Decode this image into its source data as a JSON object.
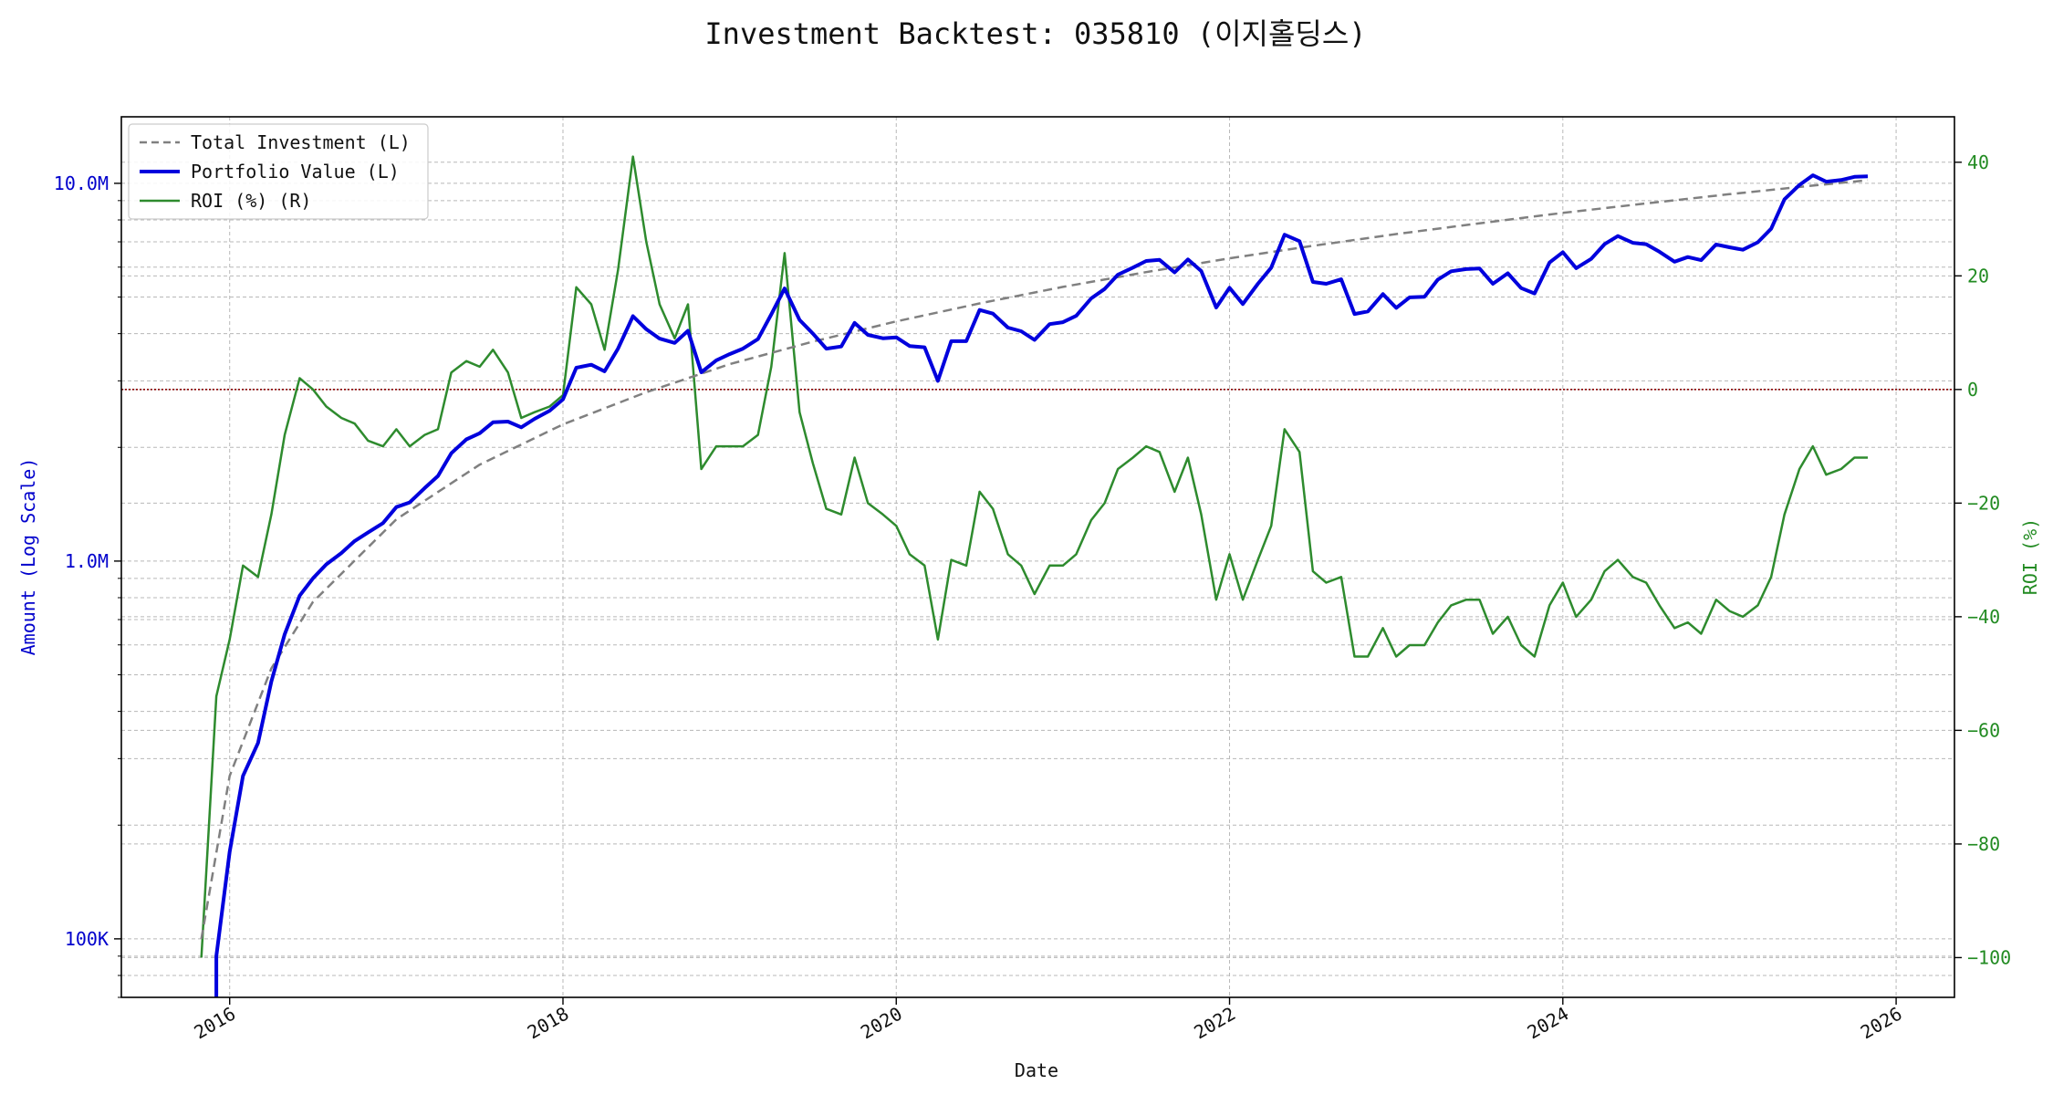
{
  "chart_data": {
    "type": "line",
    "title": "Investment Backtest: 035810 (이지홀딩스)",
    "xlabel": "Date",
    "ylabel_left": "Amount (Log Scale)",
    "ylabel_right": "ROI (%)",
    "x_range": [
      2015.35,
      2026.35
    ],
    "x_ticks": [
      {
        "value": 2016,
        "label": "2016"
      },
      {
        "value": 2018,
        "label": "2018"
      },
      {
        "value": 2020,
        "label": "2020"
      },
      {
        "value": 2022,
        "label": "2022"
      },
      {
        "value": 2024,
        "label": "2024"
      },
      {
        "value": 2026,
        "label": "2026"
      }
    ],
    "left_axis": {
      "scale": "log",
      "range": [
        70000,
        15000000
      ],
      "ticks": [
        {
          "value": 100000,
          "label": "100K"
        },
        {
          "value": 1000000,
          "label": "1.0M"
        },
        {
          "value": 10000000,
          "label": "10.0M"
        }
      ],
      "color": "#0000cc"
    },
    "right_axis": {
      "scale": "linear",
      "range": [
        -107,
        48
      ],
      "ticks": [
        {
          "value": -100,
          "label": "−100"
        },
        {
          "value": -80,
          "label": "−80"
        },
        {
          "value": -60,
          "label": "−60"
        },
        {
          "value": -40,
          "label": "−40"
        },
        {
          "value": -20,
          "label": "−20"
        },
        {
          "value": 0,
          "label": "0"
        },
        {
          "value": 20,
          "label": "20"
        },
        {
          "value": 40,
          "label": "40"
        }
      ],
      "color": "#228b22"
    },
    "zero_line": {
      "roi": 0,
      "color": "#8b0000"
    },
    "grid": true,
    "legend": {
      "position": "top-left",
      "entries": [
        {
          "label": "Total Investment (L)",
          "color": "#808080",
          "style": "dashed"
        },
        {
          "label": "Portfolio Value (L)",
          "color": "#0000dd",
          "style": "solid-thick"
        },
        {
          "label": "ROI (%) (R)",
          "color": "#2e8b2e",
          "style": "solid"
        }
      ]
    },
    "series": [
      {
        "name": "Total Investment (L)",
        "axis": "left",
        "x": [
          2015.83,
          2016.0,
          2016.25,
          2016.5,
          2017.0,
          2017.5,
          2018.0,
          2018.5,
          2019.0,
          2019.5,
          2020.0,
          2020.5,
          2021.0,
          2021.5,
          2022.0,
          2022.5,
          2023.0,
          2023.5,
          2024.0,
          2024.5,
          2025.0,
          2025.5,
          2025.83
        ],
        "values": [
          100000,
          270000,
          520000,
          780000,
          1290000,
          1800000,
          2300000,
          2800000,
          3320000,
          3810000,
          4310000,
          4810000,
          5320000,
          5820000,
          6330000,
          6830000,
          7340000,
          7840000,
          8350000,
          8850000,
          9360000,
          9860000,
          10190000
        ]
      },
      {
        "name": "Portfolio Value (L)",
        "axis": "left",
        "x": [
          2015.92,
          2016.0,
          2016.08,
          2016.17,
          2016.25,
          2016.33,
          2016.42,
          2016.5,
          2016.58,
          2016.67,
          2016.75,
          2016.83,
          2016.92,
          2017.0,
          2017.08,
          2017.17,
          2017.25,
          2017.33,
          2017.42,
          2017.5,
          2017.58,
          2017.67,
          2017.75,
          2017.83,
          2017.92,
          2018.0,
          2018.08,
          2018.17,
          2018.25,
          2018.33,
          2018.42,
          2018.5,
          2018.58,
          2018.67,
          2018.75,
          2018.83,
          2018.92,
          2019.0,
          2019.08,
          2019.17,
          2019.25,
          2019.33,
          2019.42,
          2019.5,
          2019.58,
          2019.67,
          2019.75,
          2019.83,
          2019.92,
          2020.0,
          2020.08,
          2020.17,
          2020.25,
          2020.33,
          2020.42,
          2020.5,
          2020.58,
          2020.67,
          2020.75,
          2020.83,
          2020.92,
          2021.0,
          2021.08,
          2021.17,
          2021.25,
          2021.33,
          2021.42,
          2021.5,
          2021.58,
          2021.67,
          2021.75,
          2021.83,
          2021.92,
          2022.0,
          2022.08,
          2022.17,
          2022.25,
          2022.33,
          2022.42,
          2022.5,
          2022.58,
          2022.67,
          2022.75,
          2022.83,
          2022.92,
          2023.0,
          2023.08,
          2023.17,
          2023.25,
          2023.33,
          2023.42,
          2023.5,
          2023.58,
          2023.67,
          2023.75,
          2023.83,
          2023.92,
          2024.0,
          2024.08,
          2024.17,
          2024.25,
          2024.33,
          2024.42,
          2024.5,
          2024.58,
          2024.67,
          2024.75,
          2024.83,
          2024.92,
          2025.0,
          2025.08,
          2025.17,
          2025.25,
          2025.33,
          2025.42,
          2025.5,
          2025.58,
          2025.67,
          2025.75,
          2025.83
        ],
        "values": [
          90000,
          170000,
          270000,
          330000,
          480000,
          640000,
          810000,
          900000,
          980000,
          1050000,
          1130000,
          1190000,
          1260000,
          1390000,
          1430000,
          1560000,
          1680000,
          1930000,
          2100000,
          2180000,
          2330000,
          2340000,
          2260000,
          2380000,
          2500000,
          2680000,
          3250000,
          3310000,
          3180000,
          3650000,
          4450000,
          4110000,
          3880000,
          3780000,
          4070000,
          3160000,
          3400000,
          3530000,
          3650000,
          3870000,
          4500000,
          5270000,
          4350000,
          4000000,
          3650000,
          3700000,
          4270000,
          3970000,
          3890000,
          3910000,
          3710000,
          3680000,
          3000000,
          3820000,
          3820000,
          4620000,
          4520000,
          4150000,
          4060000,
          3850000,
          4240000,
          4290000,
          4460000,
          4960000,
          5250000,
          5730000,
          5980000,
          6230000,
          6270000,
          5810000,
          6290000,
          5860000,
          4690000,
          5290000,
          4790000,
          5420000,
          5980000,
          7310000,
          7030000,
          5480000,
          5420000,
          5570000,
          4510000,
          4580000,
          5090000,
          4680000,
          4990000,
          5010000,
          5560000,
          5850000,
          5930000,
          5950000,
          5420000,
          5780000,
          5280000,
          5110000,
          6170000,
          6570000,
          5960000,
          6310000,
          6900000,
          7250000,
          6960000,
          6900000,
          6590000,
          6200000,
          6380000,
          6260000,
          6890000,
          6770000,
          6670000,
          6980000,
          7580000,
          9070000,
          9900000,
          10500000,
          10100000,
          10200000,
          10400000,
          10430000
        ]
      },
      {
        "name": "ROI (%) (R)",
        "axis": "right",
        "x": [
          2015.83,
          2015.92,
          2016.0,
          2016.08,
          2016.17,
          2016.25,
          2016.33,
          2016.42,
          2016.5,
          2016.58,
          2016.67,
          2016.75,
          2016.83,
          2016.92,
          2017.0,
          2017.08,
          2017.17,
          2017.25,
          2017.33,
          2017.42,
          2017.5,
          2017.58,
          2017.67,
          2017.75,
          2017.83,
          2017.92,
          2018.0,
          2018.08,
          2018.17,
          2018.25,
          2018.33,
          2018.42,
          2018.5,
          2018.58,
          2018.67,
          2018.75,
          2018.83,
          2018.92,
          2019.0,
          2019.08,
          2019.17,
          2019.25,
          2019.33,
          2019.42,
          2019.5,
          2019.58,
          2019.67,
          2019.75,
          2019.83,
          2019.92,
          2020.0,
          2020.08,
          2020.17,
          2020.25,
          2020.33,
          2020.42,
          2020.5,
          2020.58,
          2020.67,
          2020.75,
          2020.83,
          2020.92,
          2021.0,
          2021.08,
          2021.17,
          2021.25,
          2021.33,
          2021.42,
          2021.5,
          2021.58,
          2021.67,
          2021.75,
          2021.83,
          2021.92,
          2022.0,
          2022.08,
          2022.17,
          2022.25,
          2022.33,
          2022.42,
          2022.5,
          2022.58,
          2022.67,
          2022.75,
          2022.83,
          2022.92,
          2023.0,
          2023.08,
          2023.17,
          2023.25,
          2023.33,
          2023.42,
          2023.5,
          2023.58,
          2023.67,
          2023.75,
          2023.83,
          2023.92,
          2024.0,
          2024.08,
          2024.17,
          2024.25,
          2024.33,
          2024.42,
          2024.5,
          2024.58,
          2024.67,
          2024.75,
          2024.83,
          2024.92,
          2025.0,
          2025.08,
          2025.17,
          2025.25,
          2025.33,
          2025.42,
          2025.5,
          2025.58,
          2025.67,
          2025.75,
          2025.83
        ],
        "values": [
          -100,
          -54,
          -44,
          -31,
          -33,
          -22,
          -8,
          2,
          0,
          -3,
          -5,
          -6,
          -9,
          -10,
          -7,
          -10,
          -8,
          -7,
          3,
          5,
          4,
          7,
          3,
          -5,
          -4,
          -3,
          -1,
          18,
          15,
          7,
          21,
          41,
          26,
          15,
          9,
          15,
          -14,
          -10,
          -10,
          -10,
          -8,
          4,
          24,
          -4,
          -13,
          -21,
          -22,
          -12,
          -20,
          -22,
          -24,
          -29,
          -31,
          -44,
          -30,
          -31,
          -18,
          -21,
          -29,
          -31,
          -36,
          -31,
          -31,
          -29,
          -23,
          -20,
          -14,
          -12,
          -10,
          -11,
          -18,
          -12,
          -22,
          -37,
          -29,
          -37,
          -30,
          -24,
          -7,
          -11,
          -32,
          -34,
          -33,
          -47,
          -47,
          -42,
          -47,
          -45,
          -45,
          -41,
          -38,
          -37,
          -37,
          -43,
          -40,
          -45,
          -47,
          -38,
          -34,
          -40,
          -37,
          -32,
          -30,
          -33,
          -34,
          -38,
          -42,
          -41,
          -43,
          -37,
          -39,
          -40,
          -38,
          -33,
          -22,
          -14,
          -10,
          -15,
          -14,
          -12,
          -12
        ]
      }
    ]
  }
}
